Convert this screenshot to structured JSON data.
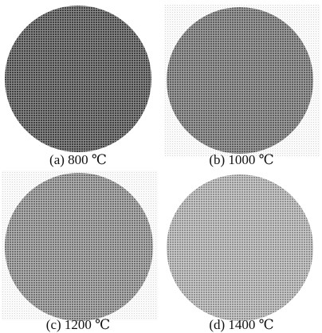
{
  "panels": [
    {
      "label": "(a) 800 ℃"
    },
    {
      "label": "(b) 1000 ℃"
    },
    {
      "label": "(c) 1200 ℃"
    },
    {
      "label": "(d) 1400 ℃"
    }
  ]
}
